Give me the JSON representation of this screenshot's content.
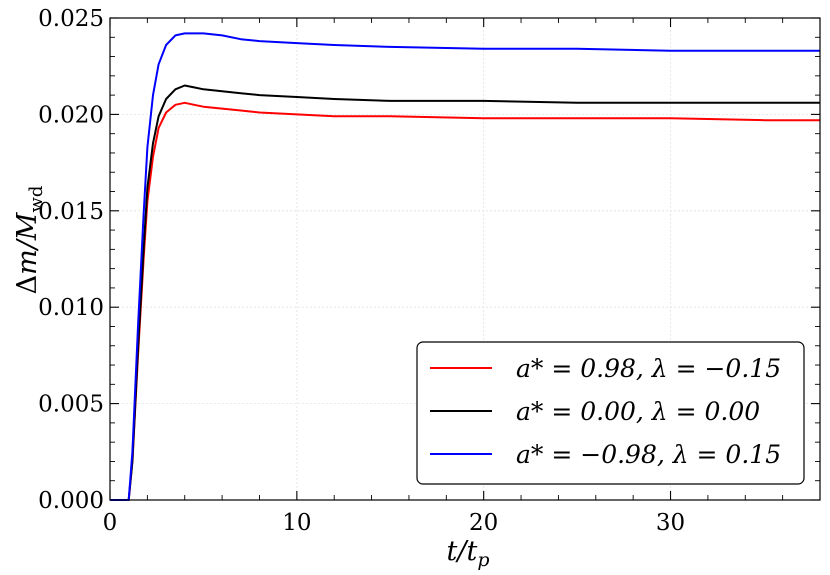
{
  "chart_data": {
    "type": "line",
    "xlabel": "t/t_p",
    "ylabel": "Δm/M_wd",
    "xlim": [
      0,
      38
    ],
    "ylim": [
      0,
      0.025
    ],
    "xticks": [
      0,
      10,
      20,
      30
    ],
    "xtick_labels": [
      "0",
      "10",
      "20",
      "30"
    ],
    "yticks": [
      0,
      0.005,
      0.01,
      0.015,
      0.02,
      0.025
    ],
    "ytick_labels": [
      "0.000",
      "0.005",
      "0.010",
      "0.015",
      "0.020",
      "0.025"
    ],
    "grid": true,
    "legend_position": "lower-right",
    "series": [
      {
        "name": "a* = 0.98, λ = −0.15",
        "color": "#ff0000",
        "x": [
          0,
          1.0,
          1.2,
          1.5,
          1.8,
          2.0,
          2.3,
          2.6,
          3.0,
          3.5,
          4.0,
          4.5,
          5.0,
          6.0,
          7.0,
          8.0,
          10.0,
          12.0,
          15.0,
          20.0,
          25.0,
          30.0,
          35.0,
          38.0
        ],
        "y": [
          0,
          0,
          0.002,
          0.0075,
          0.0125,
          0.0155,
          0.0178,
          0.0193,
          0.0201,
          0.0205,
          0.0206,
          0.0205,
          0.0204,
          0.0203,
          0.0202,
          0.0201,
          0.02,
          0.0199,
          0.0199,
          0.0198,
          0.0198,
          0.0198,
          0.0197,
          0.0197
        ]
      },
      {
        "name": "a* = 0.00, λ = 0.00",
        "color": "#000000",
        "x": [
          0,
          1.0,
          1.2,
          1.5,
          1.8,
          2.0,
          2.3,
          2.6,
          3.0,
          3.5,
          4.0,
          4.5,
          5.0,
          6.0,
          7.0,
          8.0,
          10.0,
          12.0,
          15.0,
          20.0,
          25.0,
          30.0,
          35.0,
          38.0
        ],
        "y": [
          0,
          0,
          0.002,
          0.0078,
          0.013,
          0.0162,
          0.0185,
          0.0199,
          0.0208,
          0.0213,
          0.0215,
          0.0214,
          0.0213,
          0.0212,
          0.0211,
          0.021,
          0.0209,
          0.0208,
          0.0207,
          0.0207,
          0.0206,
          0.0206,
          0.0206,
          0.0206
        ]
      },
      {
        "name": "a* = −0.98, λ = 0.15",
        "color": "#0000ff",
        "x": [
          0,
          1.0,
          1.2,
          1.5,
          1.8,
          2.0,
          2.3,
          2.6,
          3.0,
          3.5,
          4.0,
          4.5,
          5.0,
          6.0,
          7.0,
          8.0,
          10.0,
          12.0,
          15.0,
          20.0,
          25.0,
          30.0,
          35.0,
          38.0
        ],
        "y": [
          0,
          0,
          0.0025,
          0.009,
          0.0148,
          0.0183,
          0.021,
          0.0226,
          0.0236,
          0.0241,
          0.0242,
          0.0242,
          0.0242,
          0.0241,
          0.0239,
          0.0238,
          0.0237,
          0.0236,
          0.0235,
          0.0234,
          0.0234,
          0.0233,
          0.0233,
          0.0233
        ]
      }
    ]
  }
}
